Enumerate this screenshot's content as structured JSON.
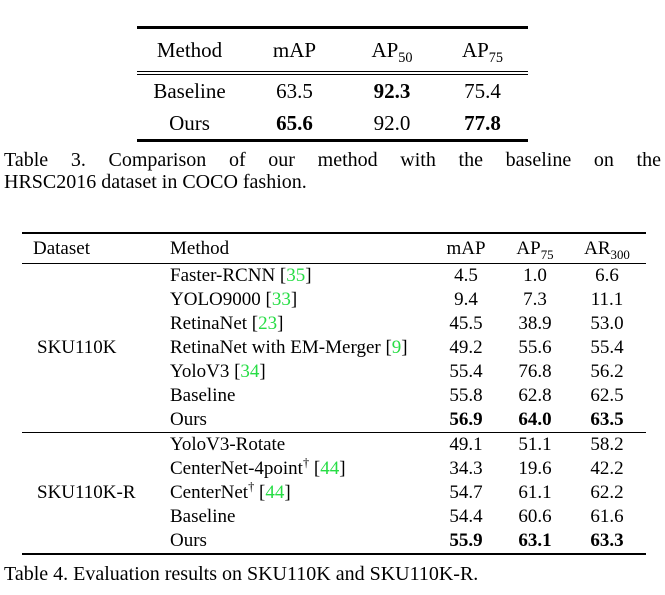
{
  "colors": {
    "citation_green": "#27dd45",
    "text": "#000000",
    "background": "#ffffff"
  },
  "table3": {
    "headers": {
      "method": [
        {
          "text": "Method"
        }
      ],
      "map": [
        {
          "text": "mAP"
        }
      ],
      "ap50": [
        {
          "text": "AP"
        },
        {
          "text": "50",
          "style": "sub"
        }
      ],
      "ap75": [
        {
          "text": "AP"
        },
        {
          "text": "75",
          "style": "sub"
        }
      ]
    },
    "rows": [
      {
        "method": "Baseline",
        "map": "63.5",
        "ap50": "92.3",
        "ap75": "75.4"
      },
      {
        "method": "Ours",
        "map": "65.6",
        "ap50": "92.0",
        "ap75": "77.8"
      }
    ],
    "caption_line1": "Table 3. Comparison of our method with the baseline on the",
    "caption_line2": "HRSC2016 dataset in COCO fashion."
  },
  "table4": {
    "headers": {
      "dataset": [
        {
          "text": "Dataset"
        }
      ],
      "method": [
        {
          "text": "Method"
        }
      ],
      "map": [
        {
          "text": "mAP"
        }
      ],
      "ap75": [
        {
          "text": "AP"
        },
        {
          "text": "75",
          "style": "sub"
        }
      ],
      "ar300": [
        {
          "text": "AR"
        },
        {
          "text": "300",
          "style": "sub"
        }
      ]
    },
    "groups": [
      {
        "dataset": "SKU110K",
        "rows": [
          {
            "method_parts": [
              {
                "text": "Faster-RCNN ["
              },
              {
                "text": "35",
                "style": "cite"
              },
              {
                "text": "]"
              }
            ],
            "map": "4.5",
            "ap75": "1.0",
            "ar300": "6.6"
          },
          {
            "method_parts": [
              {
                "text": "YOLO9000 ["
              },
              {
                "text": "33",
                "style": "cite"
              },
              {
                "text": "]"
              }
            ],
            "map": "9.4",
            "ap75": "7.3",
            "ar300": "11.1"
          },
          {
            "method_parts": [
              {
                "text": "RetinaNet ["
              },
              {
                "text": "23",
                "style": "cite"
              },
              {
                "text": "]"
              }
            ],
            "map": "45.5",
            "ap75": "38.9",
            "ar300": "53.0"
          },
          {
            "method_parts": [
              {
                "text": "RetinaNet with EM-Merger ["
              },
              {
                "text": "9",
                "style": "cite"
              },
              {
                "text": "]"
              }
            ],
            "map": "49.2",
            "ap75": "55.6",
            "ar300": "55.4"
          },
          {
            "method_parts": [
              {
                "text": "YoloV3 ["
              },
              {
                "text": "34",
                "style": "cite"
              },
              {
                "text": "]"
              }
            ],
            "map": "55.4",
            "ap75": "76.8",
            "ar300": "56.2"
          },
          {
            "method_parts": [
              {
                "text": "Baseline"
              }
            ],
            "map": "55.8",
            "ap75": "62.8",
            "ar300": "62.5"
          },
          {
            "method_parts": [
              {
                "text": "Ours"
              }
            ],
            "map": "56.9",
            "ap75": "64.0",
            "ar300": "63.5"
          }
        ]
      },
      {
        "dataset": "SKU110K-R",
        "rows": [
          {
            "method_parts": [
              {
                "text": "YoloV3-Rotate"
              }
            ],
            "map": "49.1",
            "ap75": "51.1",
            "ar300": "58.2"
          },
          {
            "method_parts": [
              {
                "text": "CenterNet-4point"
              },
              {
                "text": "†",
                "style": "sup"
              },
              {
                "text": " ["
              },
              {
                "text": "44",
                "style": "cite"
              },
              {
                "text": "]"
              }
            ],
            "map": "34.3",
            "ap75": "19.6",
            "ar300": "42.2"
          },
          {
            "method_parts": [
              {
                "text": "CenterNet"
              },
              {
                "text": "†",
                "style": "sup"
              },
              {
                "text": " ["
              },
              {
                "text": "44",
                "style": "cite"
              },
              {
                "text": "]"
              }
            ],
            "map": "54.7",
            "ap75": "61.1",
            "ar300": "62.2"
          },
          {
            "method_parts": [
              {
                "text": "Baseline"
              }
            ],
            "map": "54.4",
            "ap75": "60.6",
            "ar300": "61.6"
          },
          {
            "method_parts": [
              {
                "text": "Ours"
              }
            ],
            "map": "55.9",
            "ap75": "63.1",
            "ar300": "63.3"
          }
        ]
      }
    ],
    "caption": "Table 4. Evaluation results on SKU110K and SKU110K-R."
  }
}
